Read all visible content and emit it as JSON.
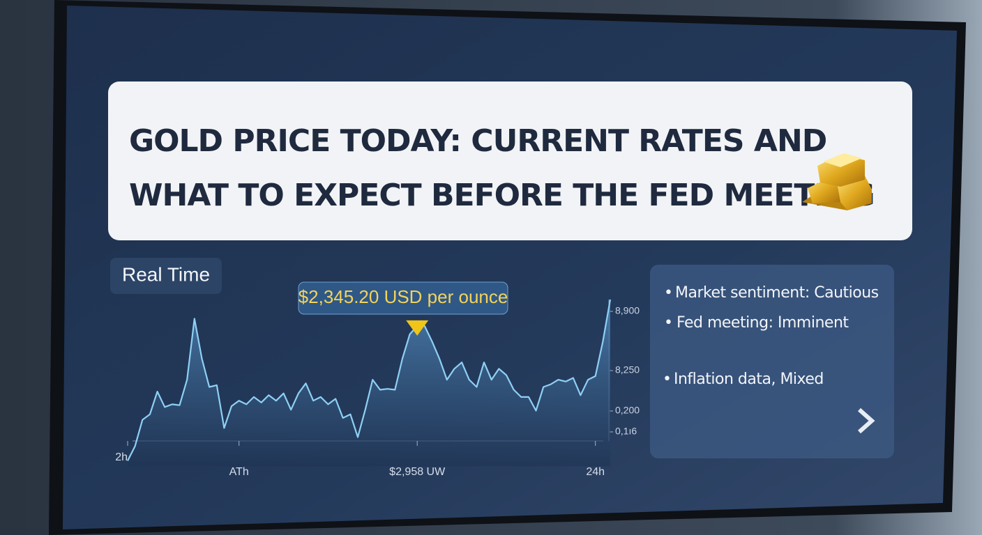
{
  "headline": [
    "GOLD PRICE TODAY: CURRENT RATES AND",
    "WHAT TO EXPECT BEFORE THE FED MEETING"
  ],
  "badge": "Real Time",
  "bullets": [
    "Market sentiment: Cautious",
    "Fed meeting: Imminent",
    "Inflation data, Mixed"
  ],
  "chart_data": {
    "type": "area",
    "color": "#8fd0f5",
    "callout": "$2,345.20 USD per ounce",
    "axis_annotations": [
      "0,200",
      "0,1ı6"
    ],
    "categories": [
      "2h",
      null,
      null,
      null,
      null,
      null,
      null,
      null,
      null,
      null,
      null,
      null,
      null,
      null,
      null,
      "ATh",
      null,
      null,
      null,
      null,
      null,
      null,
      null,
      null,
      null,
      null,
      null,
      null,
      null,
      null,
      null,
      null,
      null,
      null,
      null,
      null,
      null,
      null,
      null,
      "$2,958 UW",
      null,
      null,
      null,
      null,
      null,
      null,
      null,
      null,
      null,
      null,
      null,
      null,
      null,
      null,
      null,
      null,
      null,
      null,
      null,
      null,
      null,
      null,
      null,
      "24h",
      null,
      null
    ],
    "values": [
      7260,
      7420,
      7710,
      7770,
      8020,
      7850,
      7880,
      7870,
      8150,
      8820,
      8380,
      8070,
      8090,
      7620,
      7860,
      7920,
      7880,
      7960,
      7900,
      7980,
      7920,
      8000,
      7820,
      8000,
      8110,
      7920,
      7960,
      7880,
      7940,
      7730,
      7770,
      7520,
      7820,
      8150,
      8040,
      8050,
      8040,
      8380,
      8650,
      8740,
      8740,
      8570,
      8380,
      8150,
      8270,
      8340,
      8150,
      8070,
      8340,
      8150,
      8270,
      8200,
      8040,
      7960,
      7960,
      7810,
      8070,
      8100,
      8150,
      8130,
      8170,
      7980,
      8150,
      8190,
      8570,
      9030
    ],
    "ylim": [
      7200,
      9050
    ],
    "yticks": [
      {
        "value": 8900,
        "label": "8,900"
      },
      {
        "value": 8250,
        "label": "8,250"
      }
    ]
  }
}
